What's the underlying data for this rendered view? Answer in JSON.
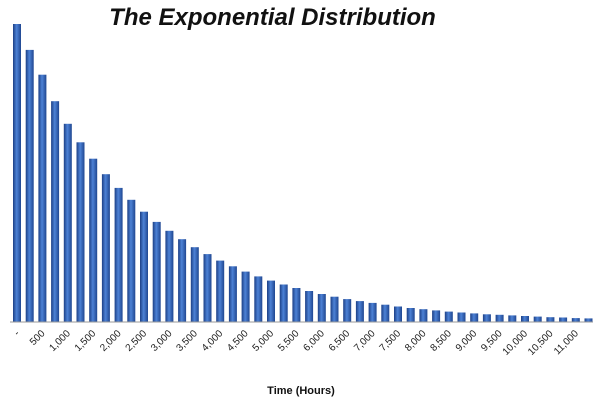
{
  "chart_data": {
    "type": "bar",
    "title": "The Exponential Distribution",
    "xlabel": "Time (Hours)",
    "ylabel": "",
    "bar_color": "#2f5fb3",
    "grid": false,
    "legend": "none",
    "x": [
      0,
      250,
      500,
      750,
      1000,
      1250,
      1500,
      1750,
      2000,
      2250,
      2500,
      2750,
      3000,
      3250,
      3500,
      3750,
      4000,
      4250,
      4500,
      4750,
      5000,
      5250,
      5500,
      5750,
      6000,
      6250,
      6500,
      6750,
      7000,
      7250,
      7500,
      7750,
      8000,
      8250,
      8500,
      8750,
      9000,
      9250,
      9500,
      9750,
      10000,
      10250,
      10500,
      10750,
      11000,
      11250
    ],
    "tick_labels": [
      "-",
      "500",
      "1,000",
      "1,500",
      "2,000",
      "2,500",
      "3,000",
      "3,500",
      "4,000",
      "4,500",
      "5,000",
      "5,500",
      "6,000",
      "6,500",
      "7,000",
      "7,500",
      "8,000",
      "8,500",
      "9,000",
      "9,500",
      "10,000",
      "10,500",
      "11,000"
    ],
    "values": [
      1.0,
      0.913,
      0.83,
      0.741,
      0.665,
      0.603,
      0.548,
      0.496,
      0.45,
      0.41,
      0.37,
      0.336,
      0.306,
      0.278,
      0.251,
      0.228,
      0.206,
      0.187,
      0.169,
      0.153,
      0.139,
      0.126,
      0.114,
      0.104,
      0.094,
      0.085,
      0.077,
      0.07,
      0.064,
      0.058,
      0.052,
      0.047,
      0.043,
      0.039,
      0.035,
      0.032,
      0.029,
      0.026,
      0.024,
      0.022,
      0.02,
      0.018,
      0.016,
      0.015,
      0.013,
      0.012
    ],
    "ylim": [
      0,
      1.0
    ]
  }
}
